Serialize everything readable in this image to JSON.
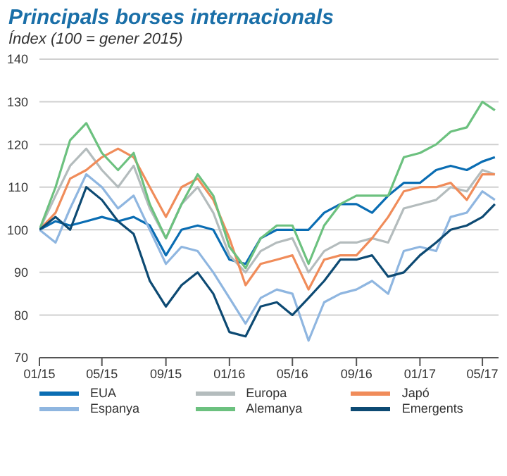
{
  "chart_data": {
    "type": "line",
    "title": "Principals borses internacionals",
    "subtitle": "Índex (100 = gener 2015)",
    "x": [
      "2015-01",
      "2015-02",
      "2015-03",
      "2015-04",
      "2015-05",
      "2015-06",
      "2015-07",
      "2015-08",
      "2015-09",
      "2015-10",
      "2015-11",
      "2015-12",
      "2016-01",
      "2016-02",
      "2016-03",
      "2016-04",
      "2016-05",
      "2016-06",
      "2016-07",
      "2016-08",
      "2016-09",
      "2016-10",
      "2016-11",
      "2016-12",
      "2017-01",
      "2017-02",
      "2017-03",
      "2017-04",
      "2017-05",
      "2017-05-25"
    ],
    "series": [
      {
        "name": "EUA",
        "color": "#0a6db3",
        "values": [
          100,
          102,
          101,
          102,
          103,
          102,
          103,
          101,
          94,
          100,
          101,
          100,
          93,
          92,
          98,
          100,
          100,
          100,
          104,
          106,
          106,
          104,
          108,
          111,
          111,
          114,
          115,
          114,
          116,
          117
        ]
      },
      {
        "name": "Europa",
        "color": "#b4bcbd",
        "values": [
          100,
          108,
          115,
          119,
          114,
          110,
          115,
          105,
          98,
          106,
          110,
          104,
          94,
          90,
          95,
          97,
          98,
          90,
          95,
          97,
          97,
          98,
          97,
          105,
          106,
          107,
          110,
          109,
          114,
          113
        ]
      },
      {
        "name": "Japó",
        "color": "#f08c5a",
        "values": [
          100,
          104,
          112,
          114,
          117,
          119,
          117,
          110,
          103,
          110,
          112,
          107,
          98,
          87,
          92,
          93,
          94,
          86,
          93,
          94,
          94,
          98,
          103,
          109,
          110,
          110,
          111,
          107,
          113,
          113
        ]
      },
      {
        "name": "Espanya",
        "color": "#8fb6e0",
        "values": [
          100,
          97,
          105,
          113,
          110,
          105,
          108,
          100,
          92,
          96,
          95,
          90,
          84,
          78,
          84,
          86,
          85,
          74,
          83,
          85,
          86,
          88,
          85,
          95,
          96,
          95,
          103,
          104,
          109,
          107
        ]
      },
      {
        "name": "Alemanya",
        "color": "#6cc17f",
        "values": [
          100,
          110,
          121,
          125,
          118,
          114,
          118,
          106,
          98,
          106,
          113,
          108,
          96,
          91,
          98,
          101,
          101,
          92,
          101,
          106,
          108,
          108,
          108,
          117,
          118,
          120,
          123,
          124,
          130,
          128
        ]
      },
      {
        "name": "Emergents",
        "color": "#0d4a73",
        "values": [
          100,
          103,
          100,
          110,
          107,
          102,
          99,
          88,
          82,
          87,
          90,
          85,
          76,
          75,
          82,
          83,
          80,
          84,
          88,
          93,
          93,
          94,
          89,
          90,
          94,
          97,
          100,
          101,
          103,
          106
        ]
      }
    ],
    "xlim": [
      "2015-01",
      "2017-06"
    ],
    "xticks": [
      {
        "value": "2015-01",
        "label": "01/15"
      },
      {
        "value": "2015-05",
        "label": "05/15"
      },
      {
        "value": "2015-09",
        "label": "09/15"
      },
      {
        "value": "2016-01",
        "label": "01/16"
      },
      {
        "value": "2016-05",
        "label": "05/16"
      },
      {
        "value": "2016-09",
        "label": "09/16"
      },
      {
        "value": "2017-01",
        "label": "01/17"
      },
      {
        "value": "2017-05",
        "label": "05/17"
      }
    ],
    "ylim": [
      70,
      140
    ],
    "yticks": [
      70,
      80,
      90,
      100,
      110,
      120,
      130,
      140
    ],
    "grid": "y",
    "legend": "bottom",
    "marker": "none",
    "line_style": "solid"
  }
}
